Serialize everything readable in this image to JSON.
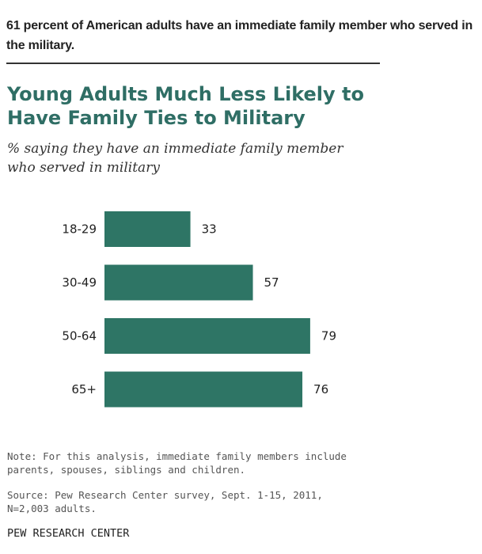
{
  "headline": "61 percent of American adults have an immediate family member who served in the military.",
  "chart_data": {
    "type": "bar",
    "orientation": "horizontal",
    "title_line1": "Young Adults Much Less Likely to",
    "title_line2": "Have Family Ties to Military",
    "subtitle_line1": "% saying they have an immediate family member",
    "subtitle_line2": "who served in military",
    "categories": [
      "18-29",
      "30-49",
      "50-64",
      "65+"
    ],
    "values": [
      33,
      57,
      79,
      76
    ],
    "data_labels": [
      "33",
      "57",
      "79",
      "76"
    ],
    "xlim": [
      0,
      100
    ],
    "grid": false,
    "legend": "none",
    "bar_color": "#2e7565"
  },
  "note_line1": "Note: For this analysis, immediate family members include",
  "note_line2": "parents, spouses, siblings and children.",
  "source_line1": "Source: Pew Research Center survey, Sept. 1-15, 2011,",
  "source_line2": "N=2,003 adults.",
  "organization": "PEW RESEARCH CENTER"
}
